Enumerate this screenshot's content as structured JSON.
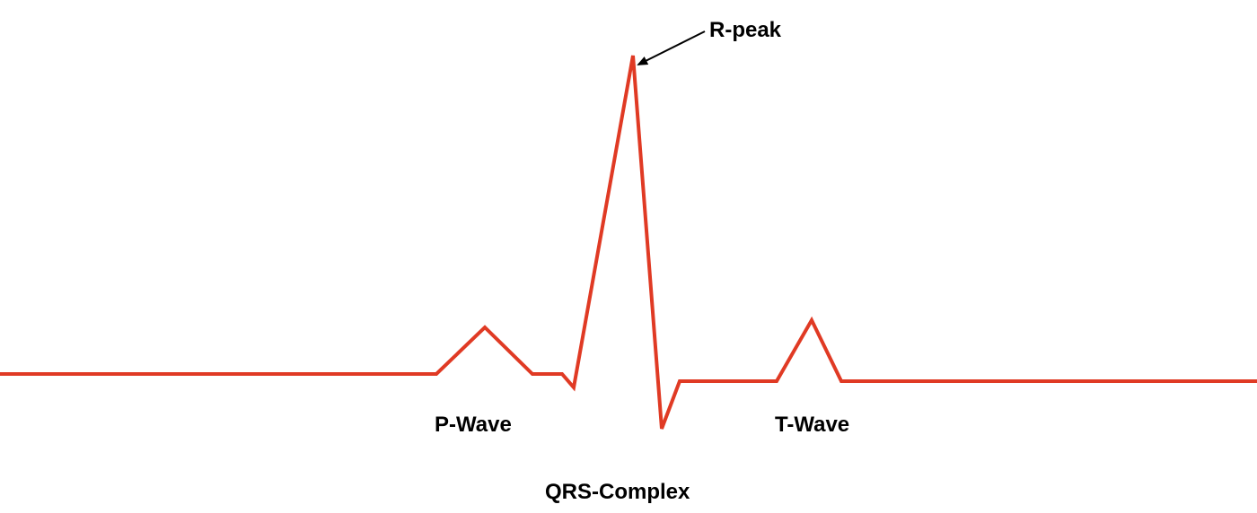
{
  "labels": {
    "r_peak": "R-peak",
    "p_wave": "P-Wave",
    "t_wave": "T-Wave",
    "qrs_complex": "QRS-Complex"
  },
  "colors": {
    "waveform": "#e03a24",
    "text": "#000000",
    "arrow": "#000000",
    "background": "#ffffff"
  }
}
